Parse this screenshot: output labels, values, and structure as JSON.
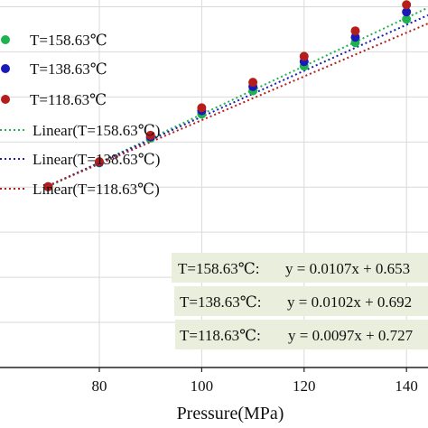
{
  "chart_data": {
    "type": "scatter",
    "xlabel": "Pressure(MPa)",
    "ylabel": "",
    "title": "",
    "xlim": [
      60.6,
      144.2
    ],
    "ylim": [
      0.6,
      2.23
    ],
    "x_ticks": [
      80,
      100,
      120,
      140
    ],
    "grid": true,
    "legend_position": "top-left",
    "x": [
      70,
      80,
      90,
      100,
      110,
      120,
      130,
      140
    ],
    "series": [
      {
        "name": "T=158.63℃",
        "color": "#1fb350",
        "values": [
          1.402,
          1.508,
          1.617,
          1.724,
          1.827,
          1.937,
          2.041,
          2.145
        ]
      },
      {
        "name": "T=138.63℃",
        "color": "#1a1ab8",
        "values": [
          1.402,
          1.51,
          1.623,
          1.739,
          1.846,
          1.957,
          2.065,
          2.177
        ]
      },
      {
        "name": "T=118.63℃",
        "color": "#b51d1d",
        "values": [
          1.402,
          1.513,
          1.63,
          1.752,
          1.865,
          1.98,
          2.093,
          2.209
        ]
      }
    ],
    "trendlines": [
      {
        "name": "Linear(T=158.63℃)",
        "color": "#1fb350",
        "slope": 0.0107,
        "intercept": 0.653
      },
      {
        "name": "Linear(T=138.63℃)",
        "color": "#1a1ab8",
        "slope": 0.0102,
        "intercept": 0.692
      },
      {
        "name": "Linear(T=118.63℃)",
        "color": "#b51d1d",
        "slope": 0.0097,
        "intercept": 0.727
      }
    ],
    "equations": [
      {
        "label": "T=158.63℃:",
        "equation": "y = 0.0107x + 0.653"
      },
      {
        "label": "T=138.63℃:",
        "equation": "y = 0.0102x + 0.692"
      },
      {
        "label": "T=118.63℃:",
        "equation": "y = 0.0097x + 0.727"
      }
    ]
  }
}
